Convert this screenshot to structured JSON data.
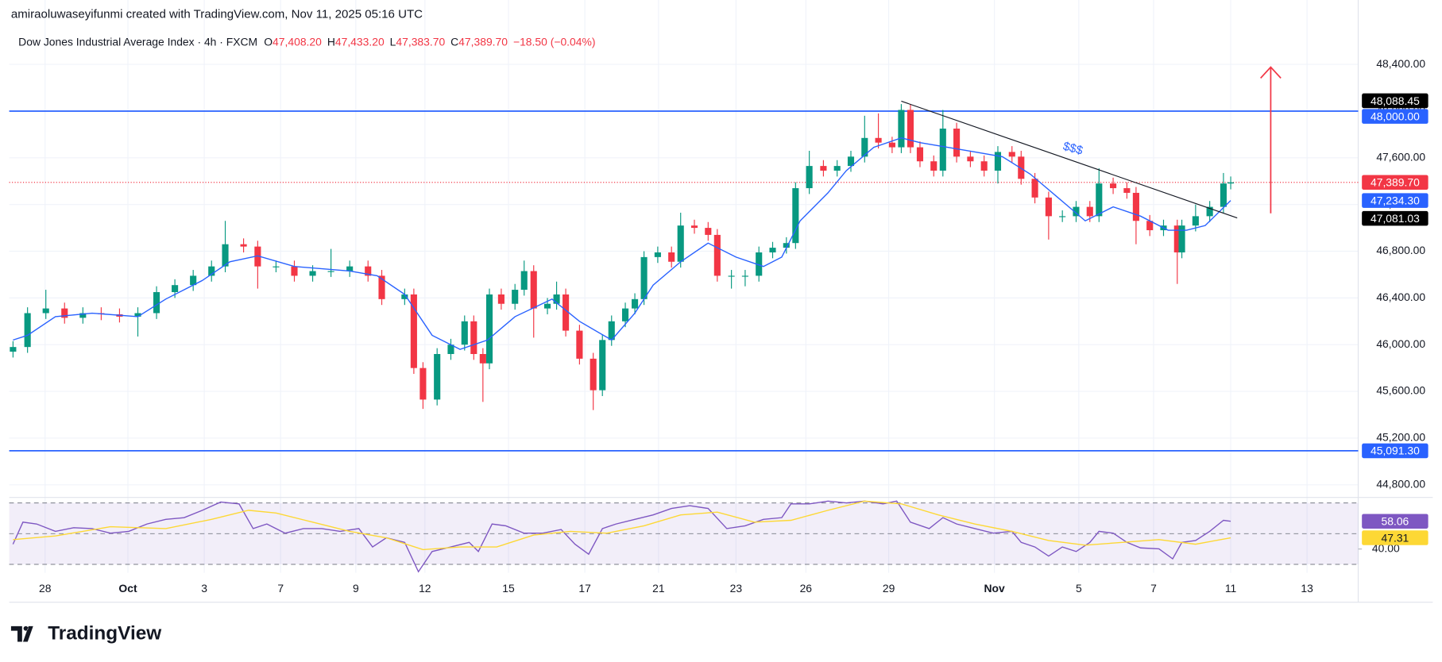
{
  "header": {
    "credit": "amiraoluwaseyifunmi created with TradingView.com, Nov 11, 2025 05:16 UTC",
    "symbol": "Dow Jones Industrial Average Index · 4h · FXCM",
    "ohlc": [
      {
        "label": "O",
        "value": "47,408.20"
      },
      {
        "label": "H",
        "value": "47,433.20"
      },
      {
        "label": "L",
        "value": "47,383.70"
      },
      {
        "label": "C",
        "value": "47,389.70"
      }
    ],
    "change": "−18.50 (−0.04%)",
    "value_color": "#f23645"
  },
  "chart_data": [
    {
      "type": "candlestick",
      "up_color": "#089981",
      "down_color": "#f23645",
      "xlim": [
        -0.94,
        34.4
      ],
      "ylim": [
        44700,
        48715
      ],
      "yticks": [
        {
          "value": 44800,
          "label": "44,800.00"
        },
        {
          "value": 45200,
          "label": "45,200.00"
        },
        {
          "value": 45600,
          "label": "45,600.00"
        },
        {
          "value": 46000,
          "label": "46,000.00"
        },
        {
          "value": 46400,
          "label": "46,400.00"
        },
        {
          "value": 46800,
          "label": "46,800.00"
        },
        {
          "value": 47200,
          "label": "47,200.00"
        },
        {
          "value": 47600,
          "label": "47,600.00"
        },
        {
          "value": 48000,
          "label": "48,000.00"
        },
        {
          "value": 48400,
          "label": "48,400.00"
        }
      ],
      "x": [
        -0.84,
        -0.46,
        0.02,
        0.51,
        0.99,
        1.47,
        1.95,
        2.43,
        2.92,
        3.4,
        3.88,
        4.36,
        4.72,
        5.2,
        5.57,
        6.05,
        6.53,
        7.01,
        7.49,
        7.98,
        8.46,
        8.82,
        9.42,
        9.66,
        9.9,
        10.27,
        10.63,
        10.99,
        11.23,
        11.47,
        11.64,
        11.95,
        12.31,
        12.55,
        12.8,
        13.16,
        13.4,
        13.64,
        14.0,
        14.36,
        14.6,
        14.84,
        15.2,
        15.45,
        15.69,
        16.05,
        16.41,
        16.65,
        17.01,
        17.37,
        17.61,
        17.98,
        18.34,
        18.7,
        19.06,
        19.42,
        19.66,
        20.02,
        20.39,
        20.75,
        21.11,
        21.47,
        21.83,
        22.19,
        22.43,
        22.67,
        22.92,
        23.28,
        23.52,
        23.88,
        24.24,
        24.6,
        24.96,
        25.33,
        25.57,
        25.93,
        26.29,
        26.65,
        27.01,
        27.37,
        27.61,
        27.98,
        28.34,
        28.58,
        28.94,
        29.3,
        29.66,
        29.78,
        30.14,
        30.51,
        30.87,
        31.06
      ],
      "open": [
        45940,
        45980,
        46270,
        46310,
        46230,
        46270,
        46260,
        46240,
        46270,
        46450,
        46510,
        46590,
        46670,
        46860,
        46840,
        46670,
        46670,
        46590,
        46630,
        46630,
        46670,
        46590,
        46390,
        46430,
        45800,
        45530,
        45920,
        46000,
        46200,
        45920,
        45840,
        46430,
        46350,
        46470,
        46630,
        46310,
        46350,
        46430,
        46120,
        45880,
        45610,
        46040,
        46200,
        46310,
        46390,
        46750,
        46790,
        46710,
        47020,
        47000,
        46940,
        46590,
        46590,
        46590,
        46790,
        46830,
        46870,
        47340,
        47530,
        47490,
        47530,
        47610,
        47770,
        47730,
        47690,
        48010,
        47690,
        47570,
        47490,
        47850,
        47610,
        47570,
        47490,
        47650,
        47610,
        47420,
        47260,
        47100,
        47100,
        47180,
        47100,
        47380,
        47340,
        47300,
        47060,
        46980,
        47020,
        46790,
        47020,
        47100,
        47180,
        47380
      ],
      "high": [
        46030,
        46320,
        46470,
        46360,
        46320,
        46320,
        46310,
        46320,
        46500,
        46560,
        46640,
        46720,
        47060,
        46910,
        46890,
        46720,
        46720,
        46680,
        46820,
        46720,
        46720,
        46640,
        46480,
        46480,
        45850,
        45970,
        46050,
        46250,
        46250,
        45970,
        46480,
        46480,
        46520,
        46720,
        46680,
        46400,
        46540,
        46480,
        46170,
        45930,
        46090,
        46250,
        46360,
        46440,
        46800,
        46840,
        46840,
        47130,
        47070,
        47050,
        46990,
        46640,
        46640,
        46840,
        46880,
        46920,
        47390,
        47660,
        47580,
        47580,
        47660,
        47960,
        47980,
        47780,
        48060,
        48060,
        47740,
        47620,
        48010,
        47900,
        47660,
        47620,
        47700,
        47700,
        47660,
        47470,
        47310,
        47150,
        47230,
        47230,
        47510,
        47430,
        47390,
        47350,
        47110,
        47070,
        47070,
        47070,
        47200,
        47230,
        47470,
        47440
      ],
      "low": [
        45890,
        45930,
        46220,
        46180,
        46180,
        46210,
        46190,
        46070,
        46220,
        46400,
        46460,
        46540,
        46620,
        46790,
        46480,
        46620,
        46540,
        46540,
        46580,
        46580,
        46540,
        46340,
        46340,
        45750,
        45450,
        45480,
        45870,
        45950,
        45870,
        45510,
        45790,
        46300,
        46300,
        46420,
        46060,
        46260,
        46300,
        46070,
        45830,
        45440,
        45560,
        45990,
        46150,
        46260,
        46340,
        46700,
        46660,
        46660,
        46950,
        46890,
        46540,
        46480,
        46500,
        46540,
        46740,
        46780,
        46820,
        47290,
        47440,
        47440,
        47480,
        47560,
        47680,
        47640,
        47640,
        47640,
        47520,
        47440,
        47440,
        47560,
        47520,
        47440,
        47380,
        47560,
        47370,
        47210,
        46900,
        47050,
        47050,
        47050,
        47050,
        47290,
        47250,
        46860,
        46930,
        46930,
        46520,
        46740,
        46970,
        47050,
        47130,
        47330
      ],
      "close": [
        45980,
        46270,
        46310,
        46230,
        46270,
        46260,
        46240,
        46270,
        46450,
        46510,
        46590,
        46670,
        46860,
        46840,
        46670,
        46670,
        46590,
        46630,
        46630,
        46670,
        46590,
        46390,
        46430,
        45800,
        45530,
        45920,
        46000,
        46200,
        45920,
        45840,
        46430,
        46350,
        46470,
        46630,
        46310,
        46350,
        46430,
        46120,
        45880,
        45610,
        46040,
        46200,
        46310,
        46390,
        46750,
        46790,
        46710,
        47020,
        47000,
        46940,
        46590,
        46590,
        46590,
        46790,
        46830,
        46870,
        47340,
        47530,
        47490,
        47530,
        47610,
        47770,
        47730,
        47690,
        48010,
        47690,
        47570,
        47490,
        47850,
        47610,
        47570,
        47490,
        47650,
        47610,
        47420,
        47260,
        47100,
        47100,
        47180,
        47100,
        47380,
        47340,
        47300,
        47060,
        46980,
        47020,
        46790,
        47020,
        47100,
        47180,
        47380,
        47390
      ],
      "series": [
        {
          "color": "#2962ff",
          "x": [
            -0.84,
            -0.46,
            0.27,
            1.23,
            2.43,
            3.16,
            4.12,
            4.84,
            5.57,
            6.53,
            7.98,
            8.7,
            9.42,
            10.14,
            10.87,
            11.59,
            12.31,
            13.28,
            14.0,
            14.84,
            15.45,
            15.93,
            16.65,
            17.37,
            18.1,
            18.82,
            19.3,
            19.78,
            20.51,
            20.99,
            21.71,
            22.43,
            22.92,
            23.64,
            24.36,
            25.08,
            25.81,
            26.53,
            27.25,
            27.98,
            28.7,
            29.42,
            29.9,
            30.39,
            31.06
          ],
          "values": [
            46040,
            46080,
            46240,
            46270,
            46240,
            46390,
            46550,
            46710,
            46760,
            46670,
            46630,
            46590,
            46430,
            46080,
            45960,
            46040,
            46240,
            46390,
            46200,
            46040,
            46270,
            46510,
            46710,
            46870,
            46750,
            46670,
            46750,
            47060,
            47300,
            47490,
            47690,
            47770,
            47730,
            47690,
            47650,
            47610,
            47460,
            47260,
            47060,
            47180,
            47100,
            46980,
            46980,
            47020,
            47234.3
          ]
        }
      ],
      "hlines": [
        {
          "value": 48000,
          "color": "#2962ff"
        },
        {
          "value": 45091.3,
          "color": "#2962ff"
        }
      ],
      "last_price_line": {
        "value": 47389.7,
        "color": "#f23645"
      },
      "trendline": {
        "x": [
          22.43,
          31.23
        ],
        "y": [
          48085,
          47085
        ],
        "color": "#131722"
      },
      "annotation": {
        "text": "$$$",
        "color": "#2962ff"
      },
      "price_labels": [
        {
          "value": 48088.45,
          "label": "48,088.45",
          "color": "#000000"
        },
        {
          "value": 48000,
          "label": "48,000.00",
          "color": "#2962ff"
        },
        {
          "value": 47389.7,
          "label": "47,389.70",
          "color": "#f23645"
        },
        {
          "value": 47234.3,
          "label": "47,234.30",
          "color": "#2962ff"
        },
        {
          "value": 47081.03,
          "label": "47,081.03",
          "color": "#000000"
        },
        {
          "value": 45091.3,
          "label": "45,091.30",
          "color": "#2962ff"
        }
      ]
    },
    {
      "type": "line",
      "xlim": [
        -0.94,
        34.4
      ],
      "ylim": [
        24.5,
        72.4
      ],
      "yticks": [
        {
          "value": 40,
          "label": "40.00"
        }
      ],
      "bands": [
        70,
        50,
        30
      ],
      "band_color": "#7e57c2",
      "xticks": [
        {
          "value": 0,
          "label": "28"
        },
        {
          "value": 2.17,
          "label": "Oct"
        },
        {
          "value": 4.17,
          "label": "3"
        },
        {
          "value": 6.17,
          "label": "7"
        },
        {
          "value": 8.14,
          "label": "9"
        },
        {
          "value": 9.95,
          "label": "12"
        },
        {
          "value": 12.14,
          "label": "15"
        },
        {
          "value": 14.14,
          "label": "17"
        },
        {
          "value": 16.07,
          "label": "21"
        },
        {
          "value": 18.1,
          "label": "23"
        },
        {
          "value": 19.93,
          "label": "26"
        },
        {
          "value": 22.1,
          "label": "29"
        },
        {
          "value": 24.87,
          "label": "Nov"
        },
        {
          "value": 27.08,
          "label": "5"
        },
        {
          "value": 29.04,
          "label": "7"
        },
        {
          "value": 31.06,
          "label": "11"
        },
        {
          "value": 33.06,
          "label": "13"
        }
      ],
      "series": [
        {
          "color": "#7e57c2",
          "x": [
            -0.84,
            -0.58,
            -0.22,
            0.27,
            0.75,
            1.23,
            1.71,
            2.19,
            2.67,
            3.16,
            3.64,
            4.12,
            4.6,
            5.08,
            5.45,
            5.81,
            6.29,
            6.77,
            7.25,
            7.73,
            8.22,
            8.58,
            8.94,
            9.42,
            9.78,
            10.14,
            10.63,
            11.11,
            11.35,
            11.71,
            12.07,
            12.55,
            13.04,
            13.52,
            13.88,
            14.24,
            14.6,
            14.96,
            15.45,
            15.93,
            16.41,
            16.89,
            17.37,
            17.86,
            18.34,
            18.82,
            19.3,
            19.54,
            20.02,
            20.51,
            20.99,
            21.47,
            21.95,
            22.31,
            22.67,
            23.16,
            23.52,
            23.88,
            24.36,
            24.84,
            25.33,
            25.57,
            25.93,
            26.29,
            26.65,
            27.01,
            27.37,
            27.61,
            27.98,
            28.34,
            28.7,
            29.18,
            29.54,
            29.78,
            30.14,
            30.51,
            30.87,
            31.06
          ],
          "values": [
            43.1,
            57.5,
            56.3,
            51.5,
            53.9,
            53.3,
            50.3,
            51.5,
            56.3,
            59.3,
            60.4,
            65.2,
            70.6,
            69.4,
            53.3,
            56.3,
            50.3,
            53.3,
            53.3,
            51.5,
            53.3,
            41.3,
            47.3,
            44.3,
            25.2,
            38.4,
            41.3,
            44.3,
            38.4,
            56.3,
            55.1,
            50.3,
            50.3,
            52.7,
            43.1,
            36.6,
            53.3,
            56.3,
            59.3,
            62.2,
            66.4,
            68.2,
            66.4,
            53.3,
            55.1,
            59.3,
            60.4,
            69.4,
            69.4,
            71.2,
            70,
            71.2,
            69.4,
            71.2,
            57.5,
            53.3,
            60.4,
            56.3,
            53.3,
            50.3,
            51.5,
            44.3,
            41.3,
            35.4,
            41.3,
            38.4,
            44.3,
            51.5,
            50.3,
            44.3,
            40.7,
            40.1,
            33.6,
            44.3,
            45.5,
            51.5,
            58.7,
            58.06
          ]
        },
        {
          "color": "#fdd835",
          "x": [
            -0.84,
            0.27,
            1.71,
            3.16,
            4.36,
            5.33,
            6.05,
            7.01,
            7.98,
            8.94,
            9.9,
            10.87,
            11.83,
            12.8,
            13.76,
            14.72,
            15.69,
            16.65,
            17.61,
            18.58,
            19.54,
            20.51,
            21.47,
            22.43,
            23.4,
            24.36,
            25.33,
            26.29,
            27.25,
            28.22,
            29.18,
            30.14,
            31.06
          ],
          "values": [
            46.1,
            48.5,
            54.5,
            53.3,
            59.3,
            65.2,
            63.4,
            57.5,
            51.5,
            47.3,
            39.6,
            41.3,
            41.3,
            49.1,
            51.5,
            50.3,
            55.1,
            62.2,
            64.0,
            57.5,
            58.7,
            65.2,
            71.2,
            69.4,
            62.2,
            56.3,
            51.5,
            45.5,
            42.5,
            44.3,
            46.1,
            43.1,
            47.31
          ]
        }
      ],
      "price_labels": [
        {
          "value": 58.06,
          "label": "58.06",
          "color": "#7e57c2",
          "text_color": "#ffffff"
        },
        {
          "value": 47.31,
          "label": "47.31",
          "color": "#fdd835",
          "text_color": "#131722"
        }
      ]
    }
  ],
  "footer": {
    "logo": "TradingView"
  }
}
